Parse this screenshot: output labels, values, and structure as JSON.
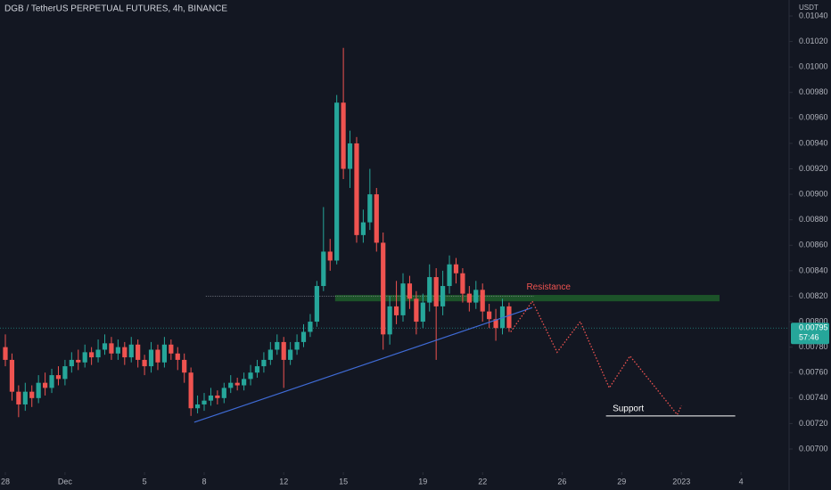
{
  "chart_data": {
    "type": "candlestick",
    "title": "DGB / TetherUS PERPETUAL FUTURES, 4h, BINANCE",
    "y_axis_label": "USDT",
    "grid": false,
    "up_color": "#26a69a",
    "down_color": "#ef5350",
    "x": [
      0,
      8,
      16,
      24,
      32,
      40,
      48,
      56,
      64,
      72,
      80,
      88,
      96,
      104,
      112,
      120,
      128,
      136,
      144,
      152,
      160,
      168,
      176,
      184,
      192,
      200,
      208,
      216,
      224,
      232,
      240,
      248,
      256,
      264,
      272,
      280,
      288,
      296,
      304,
      312,
      320,
      328,
      336,
      344,
      352,
      360,
      368,
      376,
      384,
      392,
      400,
      408,
      416,
      424,
      432,
      440,
      448,
      456,
      464,
      472,
      480,
      488,
      496,
      504,
      512,
      520,
      528,
      536,
      544,
      552,
      560,
      568,
      576,
      584,
      592,
      600,
      608
    ],
    "open": [
      0.0078,
      0.0077,
      0.00745,
      0.00735,
      0.00745,
      0.0074,
      0.00752,
      0.00748,
      0.00758,
      0.00755,
      0.00765,
      0.0077,
      0.00768,
      0.00776,
      0.00772,
      0.00778,
      0.00783,
      0.00775,
      0.0078,
      0.00772,
      0.00782,
      0.0077,
      0.00765,
      0.00778,
      0.00768,
      0.00782,
      0.00775,
      0.0077,
      0.0076,
      0.00732,
      0.00735,
      0.00738,
      0.00742,
      0.0074,
      0.00748,
      0.00752,
      0.0075,
      0.00755,
      0.0076,
      0.00765,
      0.0077,
      0.00778,
      0.00784,
      0.0077,
      0.00778,
      0.00784,
      0.00792,
      0.008,
      0.00828,
      0.00855,
      0.00848,
      0.00972,
      0.0092,
      0.0094,
      0.00868,
      0.00878,
      0.009,
      0.00862,
      0.0079,
      0.00812,
      0.00805,
      0.0083,
      0.00818,
      0.008,
      0.00815,
      0.00835,
      0.00812,
      0.00828,
      0.00845,
      0.00838,
      0.00822,
      0.00815,
      0.00825,
      0.00808,
      0.00802,
      0.00795,
      0.00812
    ],
    "high": [
      0.0079,
      0.00775,
      0.0075,
      0.00752,
      0.0075,
      0.00758,
      0.0076,
      0.00763,
      0.00765,
      0.0077,
      0.00776,
      0.00778,
      0.00782,
      0.0078,
      0.00786,
      0.0079,
      0.00788,
      0.00786,
      0.00784,
      0.00788,
      0.00786,
      0.00774,
      0.00784,
      0.00782,
      0.00788,
      0.00786,
      0.0078,
      0.00775,
      0.00764,
      0.00742,
      0.00744,
      0.00748,
      0.00746,
      0.00752,
      0.00758,
      0.00756,
      0.0076,
      0.00766,
      0.0077,
      0.00776,
      0.00784,
      0.0079,
      0.00788,
      0.00784,
      0.0079,
      0.00798,
      0.00806,
      0.00832,
      0.0089,
      0.00865,
      0.00978,
      0.01015,
      0.0095,
      0.00945,
      0.00888,
      0.0092,
      0.00905,
      0.0087,
      0.0082,
      0.00832,
      0.00838,
      0.00836,
      0.00824,
      0.00822,
      0.00845,
      0.00842,
      0.0084,
      0.00852,
      0.0085,
      0.00842,
      0.00828,
      0.00832,
      0.0083,
      0.00814,
      0.0081,
      0.00818,
      0.00815
    ],
    "low": [
      0.00765,
      0.00738,
      0.00725,
      0.0073,
      0.00733,
      0.00736,
      0.00742,
      0.00744,
      0.0075,
      0.0075,
      0.0076,
      0.00762,
      0.00764,
      0.00766,
      0.00768,
      0.00774,
      0.0077,
      0.0077,
      0.00766,
      0.00768,
      0.00764,
      0.00758,
      0.0076,
      0.00762,
      0.00764,
      0.0077,
      0.00762,
      0.00752,
      0.00726,
      0.00728,
      0.0073,
      0.00734,
      0.00735,
      0.00736,
      0.00744,
      0.00746,
      0.00746,
      0.0075,
      0.00756,
      0.0076,
      0.00766,
      0.00774,
      0.00748,
      0.00766,
      0.00774,
      0.0078,
      0.00788,
      0.00796,
      0.00824,
      0.0084,
      0.00845,
      0.00912,
      0.00905,
      0.00862,
      0.00862,
      0.00872,
      0.00855,
      0.00778,
      0.00782,
      0.00798,
      0.008,
      0.0081,
      0.0079,
      0.00795,
      0.00808,
      0.0077,
      0.00805,
      0.00822,
      0.0083,
      0.00815,
      0.00808,
      0.0081,
      0.008,
      0.00795,
      0.00785,
      0.0079,
      0.00792
    ],
    "close": [
      0.0077,
      0.00745,
      0.00735,
      0.00745,
      0.0074,
      0.00752,
      0.00748,
      0.00758,
      0.00755,
      0.00765,
      0.0077,
      0.00768,
      0.00776,
      0.00772,
      0.00778,
      0.00783,
      0.00775,
      0.0078,
      0.00772,
      0.00782,
      0.0077,
      0.00765,
      0.00778,
      0.00768,
      0.00782,
      0.00775,
      0.0077,
      0.0076,
      0.00732,
      0.00735,
      0.00738,
      0.00742,
      0.0074,
      0.00748,
      0.00752,
      0.0075,
      0.00755,
      0.0076,
      0.00765,
      0.0077,
      0.00778,
      0.00784,
      0.0077,
      0.00778,
      0.00784,
      0.00792,
      0.008,
      0.00828,
      0.00855,
      0.00848,
      0.00972,
      0.0092,
      0.0094,
      0.00868,
      0.00878,
      0.009,
      0.00862,
      0.0079,
      0.00812,
      0.00805,
      0.0083,
      0.00818,
      0.008,
      0.00815,
      0.00835,
      0.00812,
      0.00828,
      0.00845,
      0.00838,
      0.00822,
      0.00815,
      0.00825,
      0.00808,
      0.00802,
      0.00795,
      0.00812,
      0.00795
    ],
    "xlim": [
      -6.46,
      946
    ],
    "xticks": [
      {
        "value": 0,
        "label": "28"
      },
      {
        "value": 72,
        "label": "Dec"
      },
      {
        "value": 168,
        "label": "5"
      },
      {
        "value": 240,
        "label": "8"
      },
      {
        "value": 336,
        "label": "12"
      },
      {
        "value": 408,
        "label": "15"
      },
      {
        "value": 504,
        "label": "19"
      },
      {
        "value": 576,
        "label": "22"
      },
      {
        "value": 672,
        "label": "26"
      },
      {
        "value": 744,
        "label": "29"
      },
      {
        "value": 816,
        "label": "2023"
      },
      {
        "value": 888,
        "label": "4"
      }
    ],
    "ylim": [
      0.006818,
      0.010526
    ],
    "yticks": [
      {
        "value": 0.007,
        "label": "0.00700"
      },
      {
        "value": 0.0072,
        "label": "0.00720"
      },
      {
        "value": 0.0074,
        "label": "0.00740"
      },
      {
        "value": 0.0076,
        "label": "0.00760"
      },
      {
        "value": 0.0078,
        "label": "0.00780"
      },
      {
        "value": 0.008,
        "label": "0.00800"
      },
      {
        "value": 0.0082,
        "label": "0.00820"
      },
      {
        "value": 0.0084,
        "label": "0.00840"
      },
      {
        "value": 0.0086,
        "label": "0.00860"
      },
      {
        "value": 0.0088,
        "label": "0.00880"
      },
      {
        "value": 0.009,
        "label": "0.00900"
      },
      {
        "value": 0.0092,
        "label": "0.00920"
      },
      {
        "value": 0.0094,
        "label": "0.00940"
      },
      {
        "value": 0.0096,
        "label": "0.00960"
      },
      {
        "value": 0.0098,
        "label": "0.00980"
      },
      {
        "value": 0.01,
        "label": "0.01000"
      },
      {
        "value": 0.0102,
        "label": "0.01020"
      },
      {
        "value": 0.0104,
        "label": "0.01040"
      }
    ],
    "last_price": 0.00795,
    "countdown": "57:46",
    "resistance_zone": {
      "label": "Resistance",
      "x": [
        398,
        862
      ],
      "y": [
        0.00816,
        0.00821
      ],
      "color": "#1e5a2a",
      "label_x": 629,
      "label_y": 0.00827,
      "label_color": "#ef5350"
    },
    "resistance_line": {
      "x": [
        242,
        638
      ],
      "y": [
        0.0082,
        0.0082
      ]
    },
    "trend_line": {
      "x": [
        228,
        636
      ],
      "y": [
        0.00721,
        0.00811
      ],
      "color": "#3f6bd6"
    },
    "projection": {
      "x": [
        610,
        636,
        666,
        694,
        729,
        754,
        811,
        816
      ],
      "y": [
        0.00792,
        0.00816,
        0.00776,
        0.008,
        0.00748,
        0.00773,
        0.00727,
        0.00734
      ],
      "color": "#ef5350"
    },
    "support_line": {
      "label": "Support",
      "x": [
        725,
        881
      ],
      "y": [
        0.00726,
        0.00726
      ],
      "label_x": 733,
      "color": "#ffffff"
    }
  }
}
